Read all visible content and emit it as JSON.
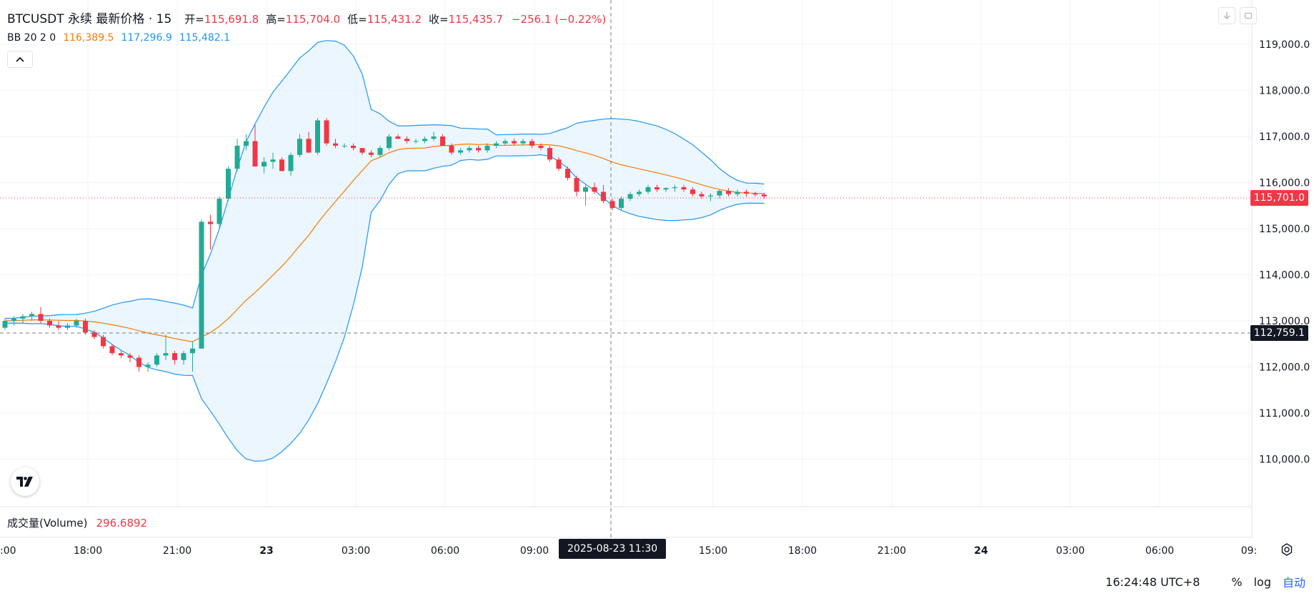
{
  "legend": {
    "symbol": "BTCUSDT 永续 最新价格 · 15",
    "open_label": "开=",
    "open": "115,691.8",
    "high_label": "高=",
    "high": "115,704.0",
    "low_label": "低=",
    "low": "115,431.2",
    "close_label": "收=",
    "close": "115,435.7",
    "change": "−256.1 (−0.22%)"
  },
  "bb": {
    "label": "BB 20 2 0",
    "basis": "116,389.5",
    "upper": "117,296.9",
    "lower": "115,482.1",
    "basis_color": "#f57c00",
    "band_color": "#2196f3"
  },
  "volume": {
    "label": "成交量(Volume)",
    "value": "296.6892"
  },
  "price_axis": {
    "ticks": [
      "119,000.0",
      "118,000.0",
      "117,000.0",
      "116,000.0",
      "115,000.0",
      "114,000.0",
      "113,000.0",
      "112,000.0",
      "111,000.0",
      "110,000.0"
    ],
    "last_price": "115,701.0",
    "crosshair_price": "112,759.1"
  },
  "time_axis": {
    "ticks": [
      ":00",
      "18:00",
      "21:00",
      "23",
      "03:00",
      "06:00",
      "09:00",
      "12:00",
      "15:00",
      "18:00",
      "21:00",
      "24",
      "03:00",
      "06:00",
      "09:"
    ],
    "crosshair_time": "2025-08-23   11:30"
  },
  "bottom_bar": {
    "clock": "16:24:48 UTC+8",
    "percent": "%",
    "log": "log",
    "auto": "自动"
  },
  "icons": {
    "collapse": "chevron-up-icon",
    "logo": "tradingview-logo-icon",
    "settings": "settings-icon",
    "download": "arrow-down-icon",
    "fullscreen": "fullscreen-icon"
  },
  "colors": {
    "up": "#22ab94",
    "down": "#f23645",
    "basis": "#f57c00",
    "band": "#2196f3",
    "band_fill": "#e3f2fd"
  },
  "chart_data": {
    "type": "candlestick",
    "interval": "15",
    "ylim": [
      109000,
      119500
    ],
    "indicator": "Bollinger Bands (20, 2, 0)",
    "candles": [
      [
        112850,
        113050,
        112800,
        113000
      ],
      [
        113000,
        113100,
        112900,
        113050
      ],
      [
        113050,
        113150,
        112950,
        113100
      ],
      [
        113100,
        113200,
        113000,
        113150
      ],
      [
        113150,
        113300,
        112950,
        113000
      ],
      [
        113000,
        113050,
        112850,
        112900
      ],
      [
        112900,
        113000,
        112800,
        112850
      ],
      [
        112850,
        112950,
        112800,
        112900
      ],
      [
        112900,
        113050,
        112850,
        113000
      ],
      [
        113000,
        113050,
        112700,
        112750
      ],
      [
        112750,
        112800,
        112600,
        112650
      ],
      [
        112650,
        112700,
        112400,
        112450
      ],
      [
        112450,
        112500,
        112250,
        112300
      ],
      [
        112300,
        112350,
        112200,
        112250
      ],
      [
        112250,
        112300,
        112100,
        112200
      ],
      [
        112200,
        112250,
        111900,
        112000
      ],
      [
        112000,
        112100,
        111900,
        112050
      ],
      [
        112050,
        112300,
        112000,
        112250
      ],
      [
        112250,
        112700,
        112150,
        112300
      ],
      [
        112300,
        112350,
        112050,
        112150
      ],
      [
        112150,
        112350,
        112050,
        112300
      ],
      [
        112300,
        112550,
        111900,
        112400
      ],
      [
        112400,
        115200,
        112400,
        115150
      ],
      [
        115150,
        115300,
        114550,
        115100
      ],
      [
        115100,
        115700,
        115000,
        115650
      ],
      [
        115650,
        116350,
        115600,
        116300
      ],
      [
        116300,
        116950,
        116250,
        116800
      ],
      [
        116800,
        117050,
        116700,
        116900
      ],
      [
        116900,
        117250,
        116350,
        116350
      ],
      [
        116350,
        116550,
        116200,
        116450
      ],
      [
        116450,
        116650,
        116300,
        116500
      ],
      [
        116500,
        116550,
        116250,
        116250
      ],
      [
        116250,
        116650,
        116150,
        116600
      ],
      [
        116600,
        117050,
        116550,
        116950
      ],
      [
        116950,
        117100,
        116650,
        116650
      ],
      [
        116650,
        117400,
        116600,
        117350
      ],
      [
        117350,
        117400,
        116800,
        116850
      ],
      [
        116850,
        116950,
        116750,
        116800
      ],
      [
        116800,
        116850,
        116750,
        116800
      ],
      [
        116800,
        116850,
        116700,
        116750
      ],
      [
        116750,
        116750,
        116600,
        116650
      ],
      [
        116650,
        116700,
        116550,
        116600
      ],
      [
        116600,
        116800,
        116550,
        116750
      ],
      [
        116750,
        117050,
        116700,
        117000
      ],
      [
        117000,
        117050,
        116950,
        116950
      ],
      [
        116950,
        117000,
        116850,
        116900
      ],
      [
        116900,
        116950,
        116850,
        116900
      ],
      [
        116900,
        117000,
        116850,
        116950
      ],
      [
        116950,
        117100,
        116900,
        117000
      ],
      [
        117000,
        117050,
        116800,
        116800
      ],
      [
        116800,
        116850,
        116600,
        116650
      ],
      [
        116650,
        116750,
        116600,
        116700
      ],
      [
        116700,
        116800,
        116650,
        116750
      ],
      [
        116750,
        116800,
        116650,
        116700
      ],
      [
        116700,
        116850,
        116650,
        116800
      ],
      [
        116800,
        116900,
        116750,
        116850
      ],
      [
        116850,
        116950,
        116800,
        116900
      ],
      [
        116900,
        116950,
        116800,
        116850
      ],
      [
        116850,
        116950,
        116800,
        116900
      ],
      [
        116900,
        116950,
        116750,
        116800
      ],
      [
        116800,
        116850,
        116700,
        116750
      ],
      [
        116750,
        116800,
        116450,
        116500
      ],
      [
        116500,
        116550,
        116250,
        116300
      ],
      [
        116300,
        116350,
        116050,
        116100
      ],
      [
        116100,
        116150,
        115700,
        115800
      ],
      [
        115800,
        115950,
        115500,
        115900
      ],
      [
        115900,
        116000,
        115750,
        115800
      ],
      [
        115800,
        115950,
        115550,
        115600
      ],
      [
        115600,
        115650,
        115400,
        115450
      ],
      [
        115450,
        115700,
        115400,
        115650
      ],
      [
        115650,
        115800,
        115600,
        115750
      ],
      [
        115750,
        115850,
        115700,
        115800
      ],
      [
        115800,
        115950,
        115750,
        115900
      ],
      [
        115900,
        115950,
        115800,
        115850
      ],
      [
        115850,
        115900,
        115800,
        115880
      ],
      [
        115880,
        115950,
        115800,
        115900
      ],
      [
        115900,
        115950,
        115800,
        115850
      ],
      [
        115850,
        115900,
        115700,
        115750
      ],
      [
        115750,
        115800,
        115650,
        115700
      ],
      [
        115700,
        115760,
        115600,
        115720
      ],
      [
        115720,
        115850,
        115650,
        115820
      ],
      [
        115820,
        115880,
        115700,
        115750
      ],
      [
        115750,
        115850,
        115700,
        115800
      ],
      [
        115800,
        115850,
        115700,
        115760
      ],
      [
        115760,
        115800,
        115700,
        115740
      ],
      [
        115740,
        115780,
        115650,
        115701
      ]
    ]
  }
}
